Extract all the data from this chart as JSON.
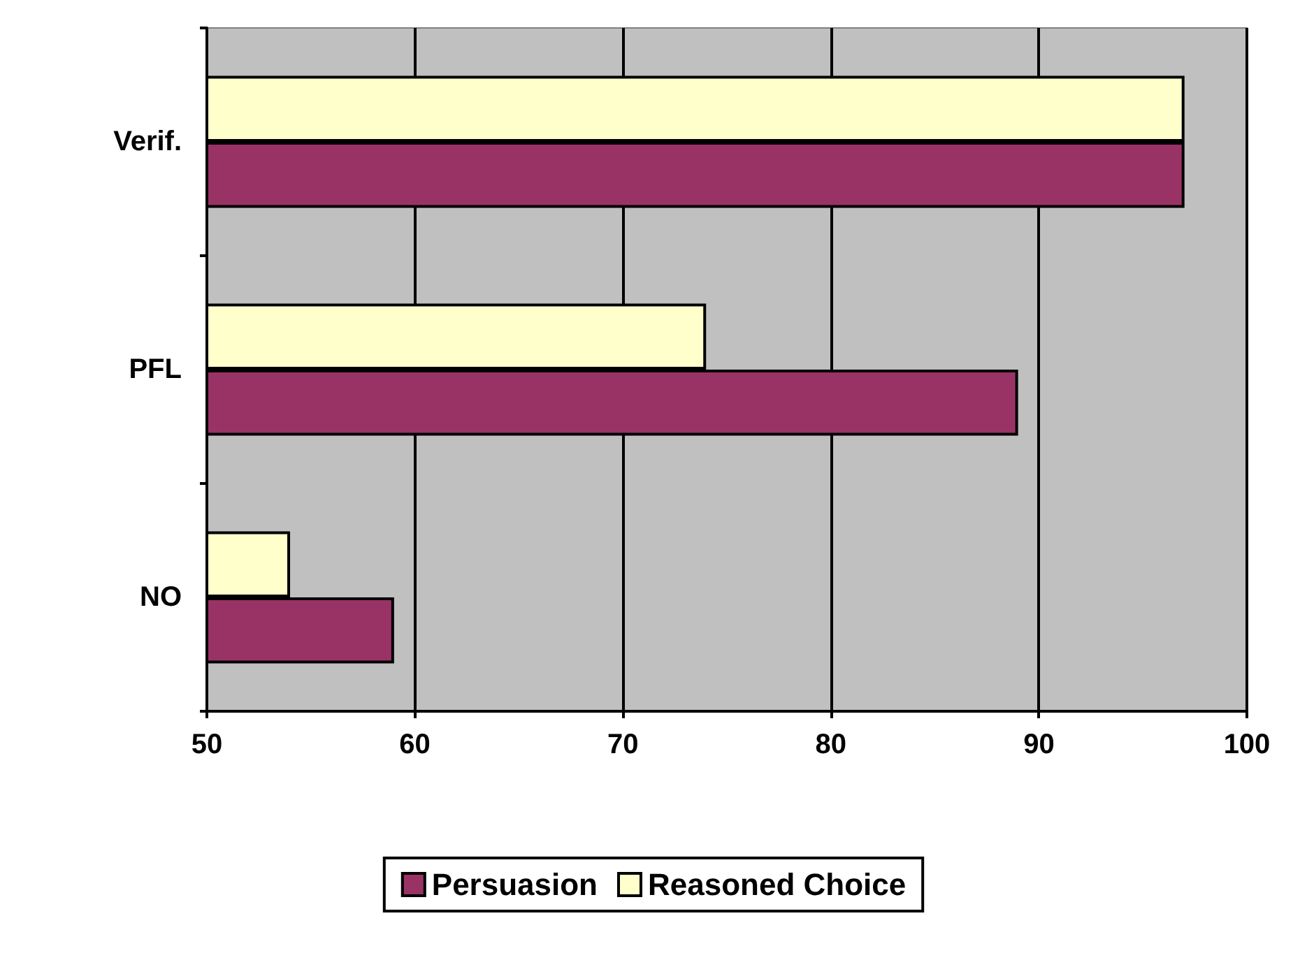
{
  "chart_data": {
    "type": "bar",
    "orientation": "horizontal",
    "categories": [
      "Verif.",
      "PFL",
      "NO"
    ],
    "series": [
      {
        "name": "Persuasion",
        "color": "#993366",
        "values": [
          97,
          89,
          59
        ]
      },
      {
        "name": "Reasoned Choice",
        "color": "#ffffcc",
        "values": [
          97,
          74,
          54
        ]
      }
    ],
    "xlim": [
      50,
      100
    ],
    "xticks": [
      50,
      60,
      70,
      80,
      90,
      100
    ],
    "grid": "x",
    "legend": "bottom"
  }
}
